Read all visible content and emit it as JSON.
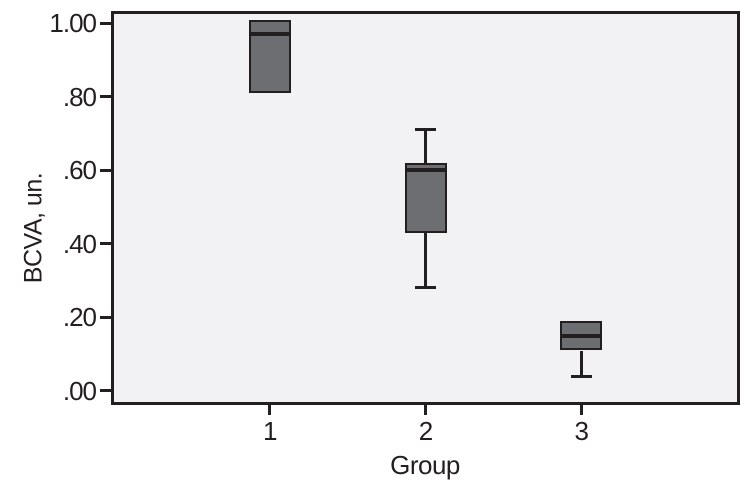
{
  "chart_data": {
    "type": "box",
    "title": "",
    "xlabel": "Group",
    "ylabel": "BCVA, un.",
    "ylim": [
      -0.03,
      1.025
    ],
    "grid": false,
    "legend": "none",
    "yticks": [
      {
        "label": ".00",
        "value": 0.0
      },
      {
        "label": ".20",
        "value": 0.2
      },
      {
        "label": ".40",
        "value": 0.4
      },
      {
        "label": ".60",
        "value": 0.6
      },
      {
        "label": ".80",
        "value": 0.8
      },
      {
        "label": "1.00",
        "value": 1.0
      }
    ],
    "categories": [
      "1",
      "2",
      "3"
    ],
    "boxes": [
      {
        "group": "1",
        "whisker_low": null,
        "q1": 0.81,
        "median": 0.97,
        "q3": 1.01,
        "whisker_high": null
      },
      {
        "group": "2",
        "whisker_low": 0.28,
        "q1": 0.43,
        "median": 0.6,
        "q3": 0.62,
        "whisker_high": 0.71
      },
      {
        "group": "3",
        "whisker_low": 0.04,
        "q1": 0.11,
        "median": 0.15,
        "q3": 0.19,
        "whisker_high": null
      }
    ],
    "colors": {
      "box_fill": "#6d6e71",
      "line": "#231f20",
      "plot_bg": "#f2f2f4",
      "figure_bg": "#ffffff"
    }
  }
}
